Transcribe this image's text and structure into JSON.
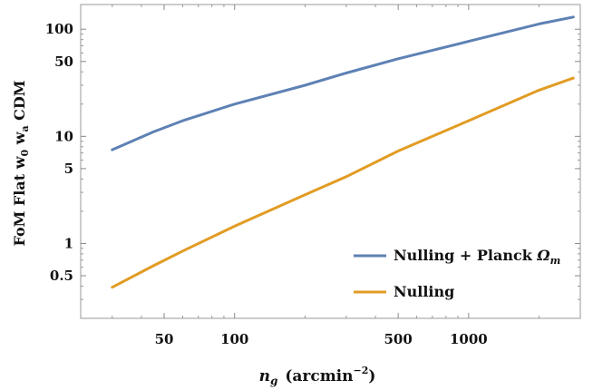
{
  "chart_data": {
    "type": "line",
    "xscale": "log",
    "yscale": "log",
    "xlim": [
      22,
      3000
    ],
    "ylim": [
      0.2,
      170
    ],
    "xticks": [
      50,
      100,
      500,
      1000
    ],
    "xtick_labels": [
      "50",
      "100",
      "500",
      "1000"
    ],
    "yticks": [
      0.5,
      1,
      5,
      10,
      50,
      100
    ],
    "ytick_labels": [
      "0.5",
      "1",
      "5",
      "10",
      "50",
      "100"
    ],
    "xlabel": {
      "symbol": "n",
      "subscript": "g",
      "unit_open": "(arcmin",
      "unit_exp": "−2",
      "unit_close": ")"
    },
    "ylabel": {
      "prefix": "FoM Flat w",
      "sub1": "0",
      "mid": " w",
      "sub2": "a",
      "suffix": " CDM"
    },
    "legend_position": "bottom-right",
    "series": [
      {
        "name": "Nulling + Planck Ωm",
        "legend_text": "Nulling + Planck ",
        "legend_symbol": "Ω",
        "legend_sub": "m",
        "color": "#5e81b5",
        "x": [
          30,
          45,
          60,
          100,
          200,
          300,
          500,
          1000,
          2000,
          2800
        ],
        "y": [
          7.5,
          11,
          14,
          20,
          30,
          39,
          53,
          77,
          112,
          130
        ]
      },
      {
        "name": "Nulling",
        "legend_text": "Nulling",
        "color": "#e19c24",
        "x": [
          30,
          45,
          60,
          100,
          200,
          300,
          500,
          1000,
          2000,
          2800
        ],
        "y": [
          0.39,
          0.62,
          0.85,
          1.45,
          2.85,
          4.2,
          7.3,
          14,
          27,
          35
        ]
      }
    ]
  }
}
